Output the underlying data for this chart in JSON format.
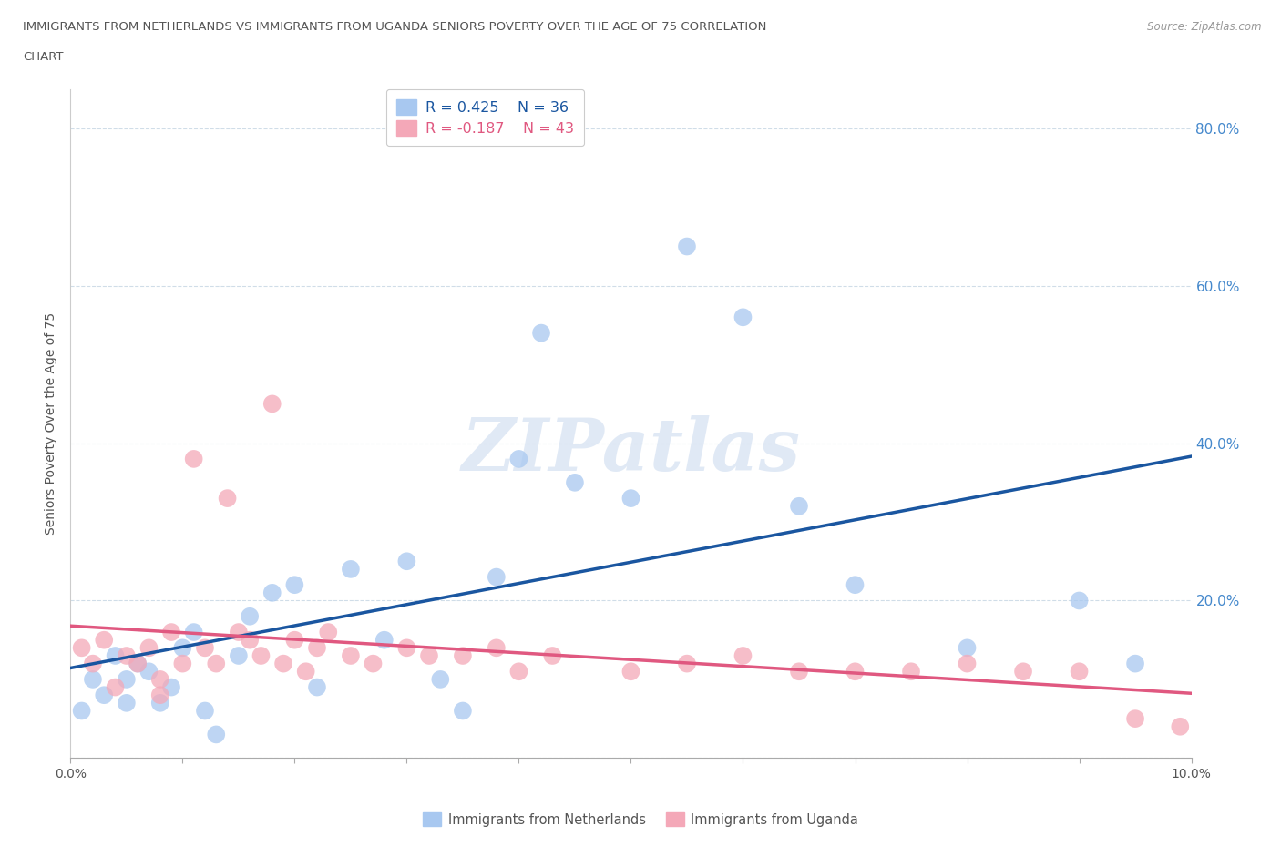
{
  "title_line1": "IMMIGRANTS FROM NETHERLANDS VS IMMIGRANTS FROM UGANDA SENIORS POVERTY OVER THE AGE OF 75 CORRELATION",
  "title_line2": "CHART",
  "source": "Source: ZipAtlas.com",
  "ylabel": "Seniors Poverty Over the Age of 75",
  "r_netherlands": 0.425,
  "n_netherlands": 36,
  "r_uganda": -0.187,
  "n_uganda": 43,
  "netherlands_color": "#a8c8f0",
  "uganda_color": "#f4a8b8",
  "netherlands_line_color": "#1a56a0",
  "uganda_line_color": "#e05880",
  "ytick_color": "#4488cc",
  "background_color": "#ffffff",
  "xlim": [
    0.0,
    0.1
  ],
  "ylim": [
    0.0,
    0.85
  ],
  "yticks": [
    0.0,
    0.2,
    0.4,
    0.6,
    0.8
  ],
  "xtick_labels_show": [
    "0.0%",
    "10.0%"
  ],
  "legend_label_nl": "Immigrants from Netherlands",
  "legend_label_ug": "Immigrants from Uganda",
  "netherlands_x": [
    0.001,
    0.002,
    0.003,
    0.004,
    0.005,
    0.005,
    0.006,
    0.007,
    0.008,
    0.009,
    0.01,
    0.011,
    0.012,
    0.013,
    0.015,
    0.016,
    0.018,
    0.02,
    0.022,
    0.025,
    0.028,
    0.03,
    0.033,
    0.035,
    0.038,
    0.04,
    0.042,
    0.045,
    0.05,
    0.055,
    0.06,
    0.065,
    0.07,
    0.08,
    0.09,
    0.095
  ],
  "netherlands_y": [
    0.06,
    0.1,
    0.08,
    0.13,
    0.07,
    0.1,
    0.12,
    0.11,
    0.07,
    0.09,
    0.14,
    0.16,
    0.06,
    0.03,
    0.13,
    0.18,
    0.21,
    0.22,
    0.09,
    0.24,
    0.15,
    0.25,
    0.1,
    0.06,
    0.23,
    0.38,
    0.54,
    0.35,
    0.33,
    0.65,
    0.56,
    0.32,
    0.22,
    0.14,
    0.2,
    0.12
  ],
  "uganda_x": [
    0.001,
    0.002,
    0.003,
    0.004,
    0.005,
    0.006,
    0.007,
    0.008,
    0.008,
    0.009,
    0.01,
    0.011,
    0.012,
    0.013,
    0.014,
    0.015,
    0.016,
    0.017,
    0.018,
    0.019,
    0.02,
    0.021,
    0.022,
    0.023,
    0.025,
    0.027,
    0.03,
    0.032,
    0.035,
    0.038,
    0.04,
    0.043,
    0.05,
    0.055,
    0.06,
    0.065,
    0.07,
    0.075,
    0.08,
    0.085,
    0.09,
    0.095,
    0.099
  ],
  "uganda_y": [
    0.14,
    0.12,
    0.15,
    0.09,
    0.13,
    0.12,
    0.14,
    0.1,
    0.08,
    0.16,
    0.12,
    0.38,
    0.14,
    0.12,
    0.33,
    0.16,
    0.15,
    0.13,
    0.45,
    0.12,
    0.15,
    0.11,
    0.14,
    0.16,
    0.13,
    0.12,
    0.14,
    0.13,
    0.13,
    0.14,
    0.11,
    0.13,
    0.11,
    0.12,
    0.13,
    0.11,
    0.11,
    0.11,
    0.12,
    0.11,
    0.11,
    0.05,
    0.04
  ]
}
